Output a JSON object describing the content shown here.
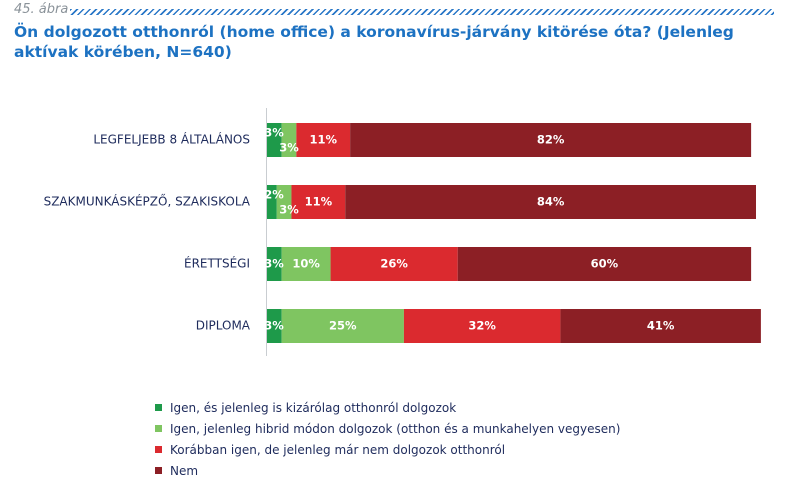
{
  "figure_number": "45. ábra",
  "title": "Ön dolgozott otthonról (home office) a koronavírus-járvány kitörése óta? (Jelenleg aktívak körében, N=640)",
  "chart_data": {
    "type": "bar",
    "orientation": "horizontal",
    "stacked": true,
    "categories": [
      "LEGFELJEBB 8 ÁLTALÁNOS",
      "SZAKMUNKÁSKÉPZŐ, SZAKISKOLA",
      "ÉRETTSÉGI",
      "DIPLOMA"
    ],
    "series": [
      {
        "name": "Igen, és jelenleg is kizárólag otthonról dolgozok",
        "color": "#1e9a4a",
        "values": [
          3,
          2,
          3,
          3
        ],
        "labels": [
          "3%",
          "2%",
          "3%",
          "3%"
        ]
      },
      {
        "name": "Igen, jelenleg hibrid módon dolgozok (otthon és a munkahelyen vegyesen)",
        "color": "#7fc561",
        "values": [
          3,
          3,
          10,
          25
        ],
        "labels": [
          "3%",
          "3%",
          "10%",
          "25%"
        ]
      },
      {
        "name": "Korábban igen, de jelenleg már nem dolgozok otthonról",
        "color": "#db2a2f",
        "values": [
          11,
          11,
          26,
          32
        ],
        "labels": [
          "11%",
          "11%",
          "26%",
          "32%"
        ]
      },
      {
        "name": "Nem",
        "color": "#8c1f25",
        "values": [
          82,
          84,
          60,
          41
        ],
        "labels": [
          "82%",
          "84%",
          "60%",
          "41%"
        ]
      }
    ],
    "xlim": [
      0,
      100
    ],
    "grid": false,
    "legend_position": "bottom"
  }
}
